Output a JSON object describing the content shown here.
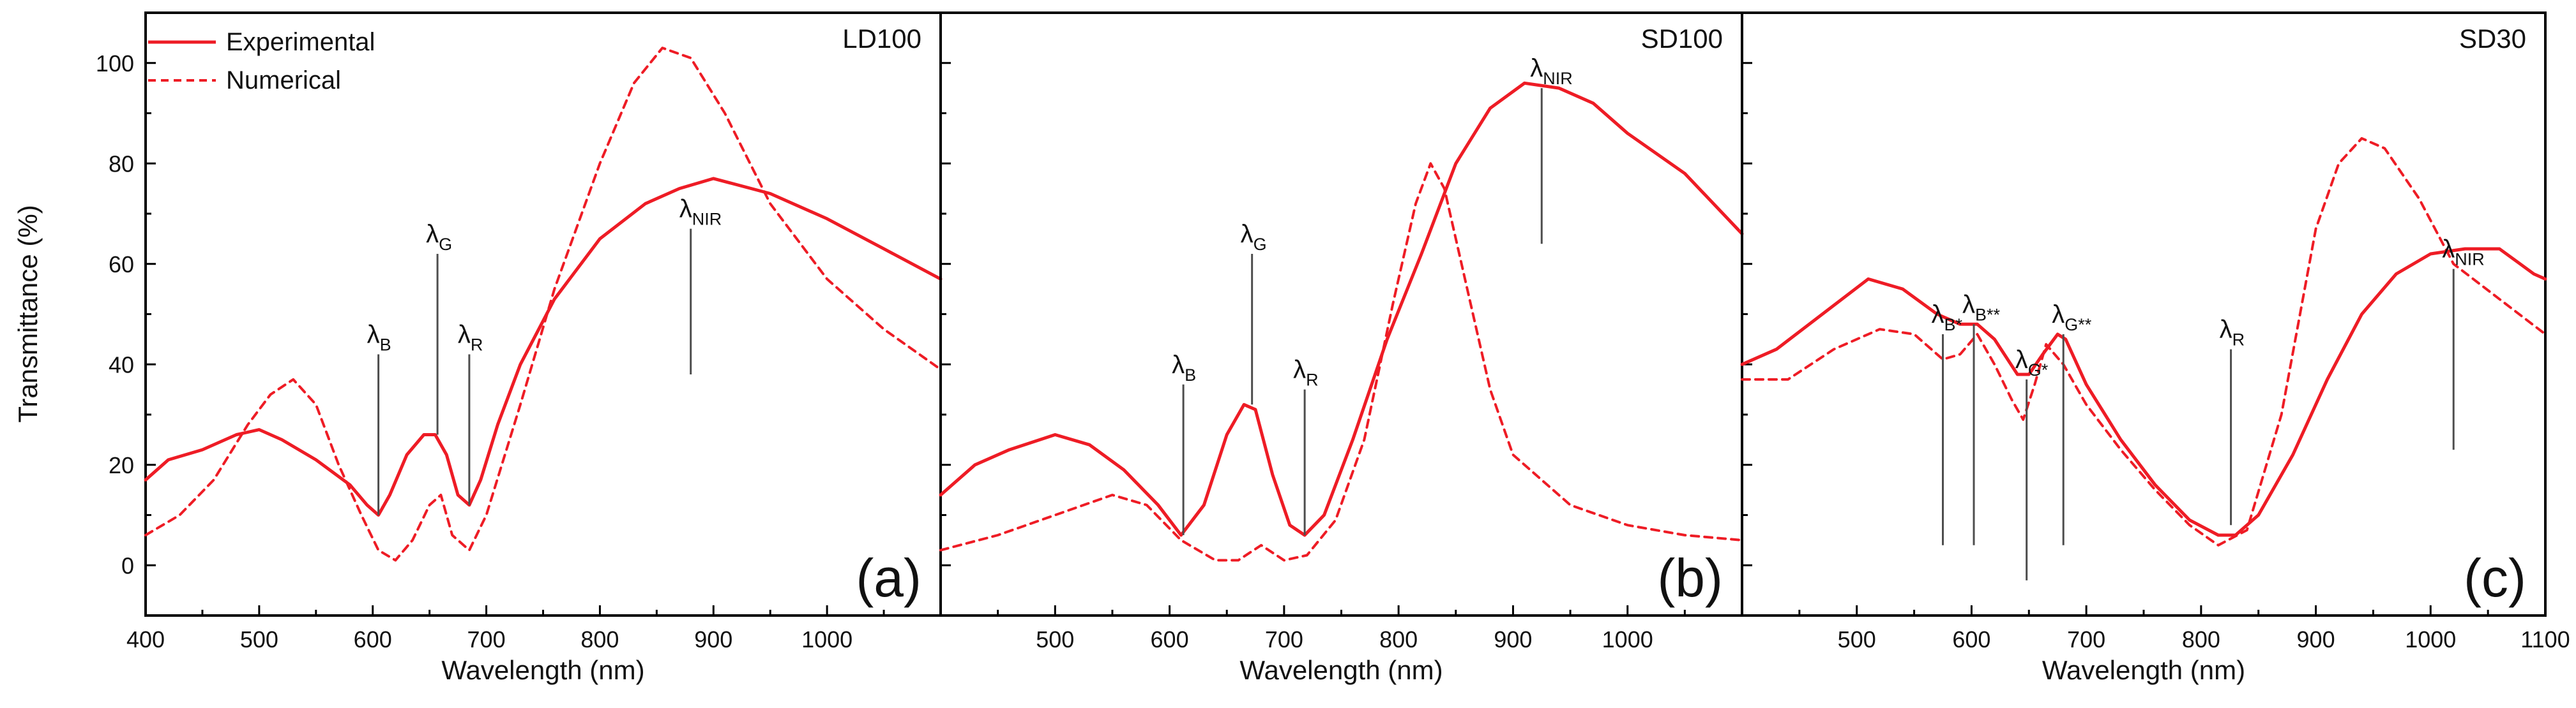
{
  "chart_data": {
    "type": "line",
    "ylabel": "Transmittance (%)",
    "ylim": [
      -10,
      110
    ],
    "yticks": [
      0,
      20,
      40,
      60,
      80,
      100
    ],
    "colors": {
      "line": "#ee1c25",
      "marker_line": "#4d4d4d",
      "frame": "#000000"
    },
    "legend": {
      "position": "top-left",
      "entries": [
        {
          "label": "Experimental",
          "style": "solid"
        },
        {
          "label": "Numerical",
          "style": "dashed"
        }
      ]
    },
    "panels": [
      {
        "id": "a",
        "tag": "LD100",
        "letter": "(a)",
        "xlabel": "Wavelength (nm)",
        "xlim": [
          400,
          1100
        ],
        "xticks": [
          400,
          500,
          600,
          700,
          800,
          900,
          1000
        ],
        "series": [
          {
            "name": "Experimental",
            "style": "solid",
            "x": [
              400,
              420,
              450,
              480,
              500,
              520,
              550,
              580,
              595,
              605,
              615,
              630,
              645,
              655,
              665,
              675,
              685,
              695,
              710,
              730,
              760,
              800,
              840,
              870,
              900,
              950,
              1000,
              1050,
              1100
            ],
            "y": [
              17,
              21,
              23,
              26,
              27,
              25,
              21,
              16,
              12,
              10,
              14,
              22,
              26,
              26,
              22,
              14,
              12,
              17,
              28,
              40,
              53,
              65,
              72,
              75,
              77,
              74,
              69,
              63,
              57
            ]
          },
          {
            "name": "Numerical",
            "style": "dashed",
            "x": [
              400,
              430,
              460,
              490,
              510,
              530,
              550,
              570,
              590,
              605,
              620,
              635,
              650,
              660,
              670,
              685,
              700,
              730,
              760,
              800,
              830,
              855,
              880,
              910,
              950,
              1000,
              1050,
              1100
            ],
            "y": [
              6,
              10,
              17,
              28,
              34,
              37,
              32,
              20,
              10,
              3,
              1,
              5,
              12,
              14,
              6,
              3,
              10,
              32,
              55,
              80,
              96,
              103,
              101,
              90,
              72,
              57,
              47,
              39
            ]
          }
        ],
        "markers": [
          {
            "main": "B",
            "sub": "B",
            "x": 605,
            "y_top": 42,
            "y_bottom": 10
          },
          {
            "main": "G",
            "sub": "G",
            "x": 657,
            "y_top": 62,
            "y_bottom": 26
          },
          {
            "main": "R",
            "sub": "R",
            "x": 685,
            "y_top": 42,
            "y_bottom": 12
          },
          {
            "main": "NIR",
            "sub": "NIR",
            "x": 880,
            "y_top": 67,
            "y_bottom": 38
          }
        ]
      },
      {
        "id": "b",
        "tag": "SD100",
        "letter": "(b)",
        "xlabel": "Wavelength (nm)",
        "xlim": [
          400,
          1100
        ],
        "xticks": [
          500,
          600,
          700,
          800,
          900,
          1000
        ],
        "series": [
          {
            "name": "Experimental",
            "style": "solid",
            "x": [
              400,
              430,
              460,
              500,
              530,
              560,
              590,
              610,
              630,
              650,
              665,
              675,
              690,
              705,
              718,
              735,
              760,
              790,
              820,
              850,
              880,
              910,
              940,
              970,
              1000,
              1050,
              1100
            ],
            "y": [
              14,
              20,
              23,
              26,
              24,
              19,
              12,
              6,
              12,
              26,
              32,
              31,
              18,
              8,
              6,
              10,
              25,
              45,
              62,
              80,
              91,
              96,
              95,
              92,
              86,
              78,
              66
            ]
          },
          {
            "name": "Numerical",
            "style": "dashed",
            "x": [
              400,
              450,
              500,
              550,
              580,
              610,
              640,
              660,
              680,
              700,
              720,
              745,
              770,
              795,
              815,
              828,
              840,
              860,
              880,
              900,
              950,
              1000,
              1050,
              1100
            ],
            "y": [
              3,
              6,
              10,
              14,
              12,
              5,
              1,
              1,
              4,
              1,
              2,
              9,
              25,
              52,
              72,
              80,
              75,
              55,
              35,
              22,
              12,
              8,
              6,
              5
            ]
          }
        ],
        "markers": [
          {
            "main": "B",
            "sub": "B",
            "x": 612,
            "y_top": 36,
            "y_bottom": 6
          },
          {
            "main": "G",
            "sub": "G",
            "x": 672,
            "y_top": 62,
            "y_bottom": 32
          },
          {
            "main": "R",
            "sub": "R",
            "x": 718,
            "y_top": 35,
            "y_bottom": 6
          },
          {
            "main": "NIR",
            "sub": "NIR",
            "x": 925,
            "y_top": 95,
            "y_bottom": 64
          }
        ]
      },
      {
        "id": "c",
        "tag": "SD30",
        "letter": "(c)",
        "xlabel": "Wavelength (nm)",
        "xlim": [
          400,
          1100
        ],
        "xticks": [
          500,
          600,
          700,
          800,
          900,
          1000,
          1100
        ],
        "series": [
          {
            "name": "Experimental",
            "style": "solid",
            "x": [
              400,
              430,
              470,
              510,
              540,
              570,
              590,
              605,
              620,
              640,
              650,
              662,
              675,
              682,
              700,
              730,
              760,
              790,
              815,
              830,
              850,
              880,
              910,
              940,
              970,
              1000,
              1030,
              1060,
              1090,
              1100
            ],
            "y": [
              40,
              43,
              50,
              57,
              55,
              50,
              48,
              48,
              45,
              38,
              38,
              42,
              46,
              45,
              36,
              25,
              16,
              9,
              6,
              6,
              10,
              22,
              37,
              50,
              58,
              62,
              63,
              63,
              58,
              57
            ]
          },
          {
            "name": "Numerical",
            "style": "dashed",
            "x": [
              400,
              440,
              480,
              520,
              550,
              575,
              590,
              605,
              620,
              635,
              645,
              655,
              665,
              680,
              700,
              730,
              760,
              790,
              815,
              840,
              870,
              900,
              920,
              940,
              960,
              990,
              1020,
              1060,
              1100
            ],
            "y": [
              37,
              37,
              43,
              47,
              46,
              41,
              42,
              46,
              40,
              33,
              29,
              36,
              44,
              40,
              32,
              23,
              15,
              8,
              4,
              7,
              30,
              67,
              80,
              85,
              83,
              73,
              60,
              53,
              46
            ]
          }
        ],
        "markers": [
          {
            "main": "B*",
            "sub": "B*",
            "x": 575,
            "y_top": 46,
            "y_bottom": 4
          },
          {
            "main": "B**",
            "sub": "B**",
            "x": 602,
            "y_top": 48,
            "y_bottom": 4
          },
          {
            "main": "G*",
            "sub": "G*",
            "x": 648,
            "y_top": 37,
            "y_bottom": -3
          },
          {
            "main": "G**",
            "sub": "G**",
            "x": 680,
            "y_top": 46,
            "y_bottom": 4
          },
          {
            "main": "R",
            "sub": "R",
            "x": 826,
            "y_top": 43,
            "y_bottom": 8
          },
          {
            "main": "NIR",
            "sub": "NIR",
            "x": 1020,
            "y_top": 59,
            "y_bottom": 23
          }
        ]
      }
    ]
  }
}
